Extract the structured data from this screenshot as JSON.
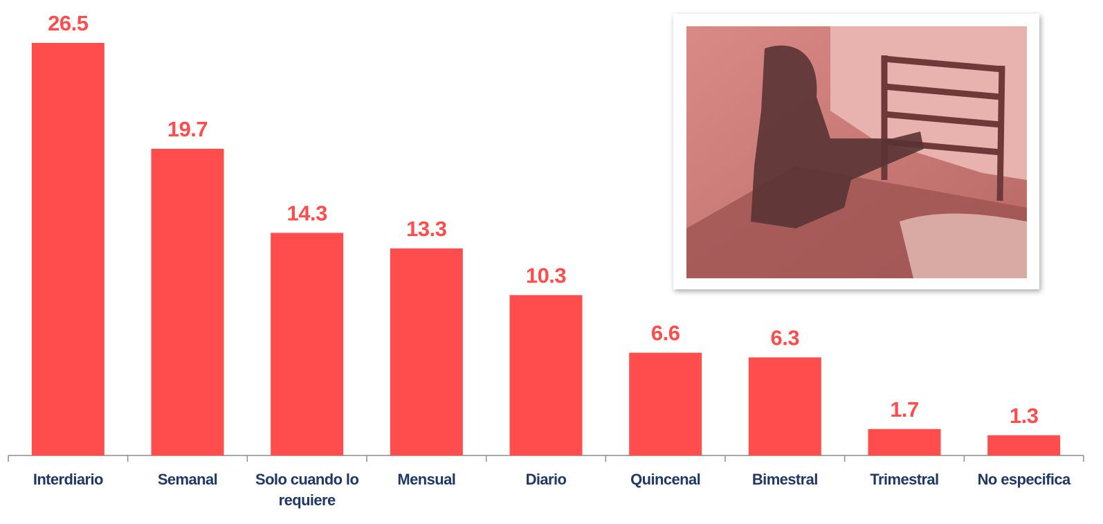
{
  "chart_data": {
    "type": "bar",
    "categories": [
      "Interdiario",
      "Semanal",
      "Solo cuando lo requiere",
      "Mensual",
      "Diario",
      "Quincenal",
      "Bimestral",
      "Trimestral",
      "No especifica"
    ],
    "values": [
      26.5,
      19.7,
      14.3,
      13.3,
      10.3,
      6.6,
      6.3,
      1.7,
      1.3
    ],
    "color": "#ff4d4d"
  }
}
